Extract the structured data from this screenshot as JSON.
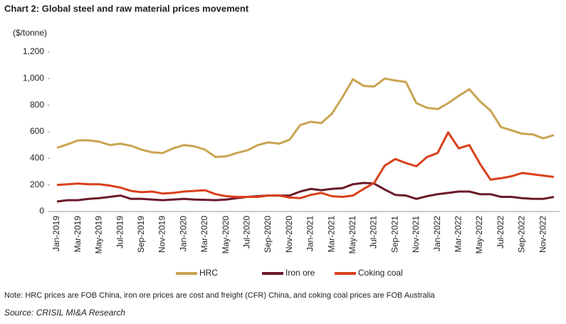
{
  "chart_data": {
    "type": "line",
    "title": "Chart 2: Global steel and raw material prices movement",
    "y_label": "($/tonne)",
    "categories": [
      "Jan-2019",
      null,
      "Mar-2019",
      null,
      "May-2019",
      null,
      "Jul-2019",
      null,
      "Sep-2019",
      null,
      "Nov-2019",
      null,
      "Jan-2020",
      null,
      "Mar-2020",
      null,
      "May-2020",
      null,
      "Jul-2020",
      null,
      "Sep-2020",
      null,
      "Nov-2020",
      null,
      "Jan-2021",
      null,
      "Mar-2021",
      null,
      "May-2021",
      null,
      "Jul-2021",
      null,
      "Sep-2021",
      null,
      "Nov-2021",
      null,
      "Jan-2022",
      null,
      "Mar-2022",
      null,
      "May-2022",
      null,
      "Jul-2022",
      null,
      "Sep-2022",
      null,
      "Nov-2022",
      null
    ],
    "series": [
      {
        "name": "HRC",
        "color": "#c9a451",
        "values": [
          480,
          505,
          535,
          535,
          525,
          500,
          510,
          495,
          465,
          445,
          440,
          475,
          500,
          490,
          465,
          410,
          415,
          440,
          460,
          500,
          520,
          510,
          540,
          650,
          675,
          665,
          735,
          860,
          995,
          945,
          940,
          1000,
          985,
          975,
          815,
          780,
          770,
          815,
          870,
          920,
          830,
          760,
          635,
          610,
          585,
          580,
          550,
          575
        ]
      },
      {
        "name": "Iron ore",
        "color": "#6b1a2a",
        "values": [
          75,
          85,
          85,
          95,
          100,
          110,
          120,
          95,
          95,
          90,
          85,
          90,
          95,
          90,
          88,
          85,
          90,
          100,
          110,
          115,
          120,
          120,
          120,
          150,
          170,
          160,
          170,
          175,
          205,
          215,
          210,
          165,
          125,
          120,
          95,
          115,
          130,
          140,
          150,
          150,
          130,
          130,
          110,
          110,
          100,
          95,
          95,
          110
        ]
      },
      {
        "name": "Coking coal",
        "color": "#d9401c",
        "values": [
          200,
          205,
          210,
          205,
          205,
          195,
          180,
          155,
          145,
          150,
          135,
          140,
          150,
          155,
          160,
          130,
          115,
          110,
          110,
          110,
          120,
          120,
          105,
          100,
          125,
          140,
          115,
          110,
          120,
          170,
          215,
          345,
          395,
          365,
          340,
          410,
          440,
          595,
          475,
          500,
          360,
          240,
          250,
          265,
          290,
          280,
          270,
          260
        ]
      }
    ],
    "ylim": [
      0,
      1200
    ],
    "yticks": [
      0,
      200,
      400,
      600,
      800,
      {
        "value": 1000,
        "label": "1,000"
      },
      {
        "value": 1200,
        "label": "1,200"
      }
    ],
    "grid": false,
    "legend": "bottom",
    "note": "Note: HRC prices are FOB China, iron ore prices are cost and freight (CFR) China, and coking coal prices are FOB Australia",
    "source": "Source: CRISIL MI&A Research"
  }
}
